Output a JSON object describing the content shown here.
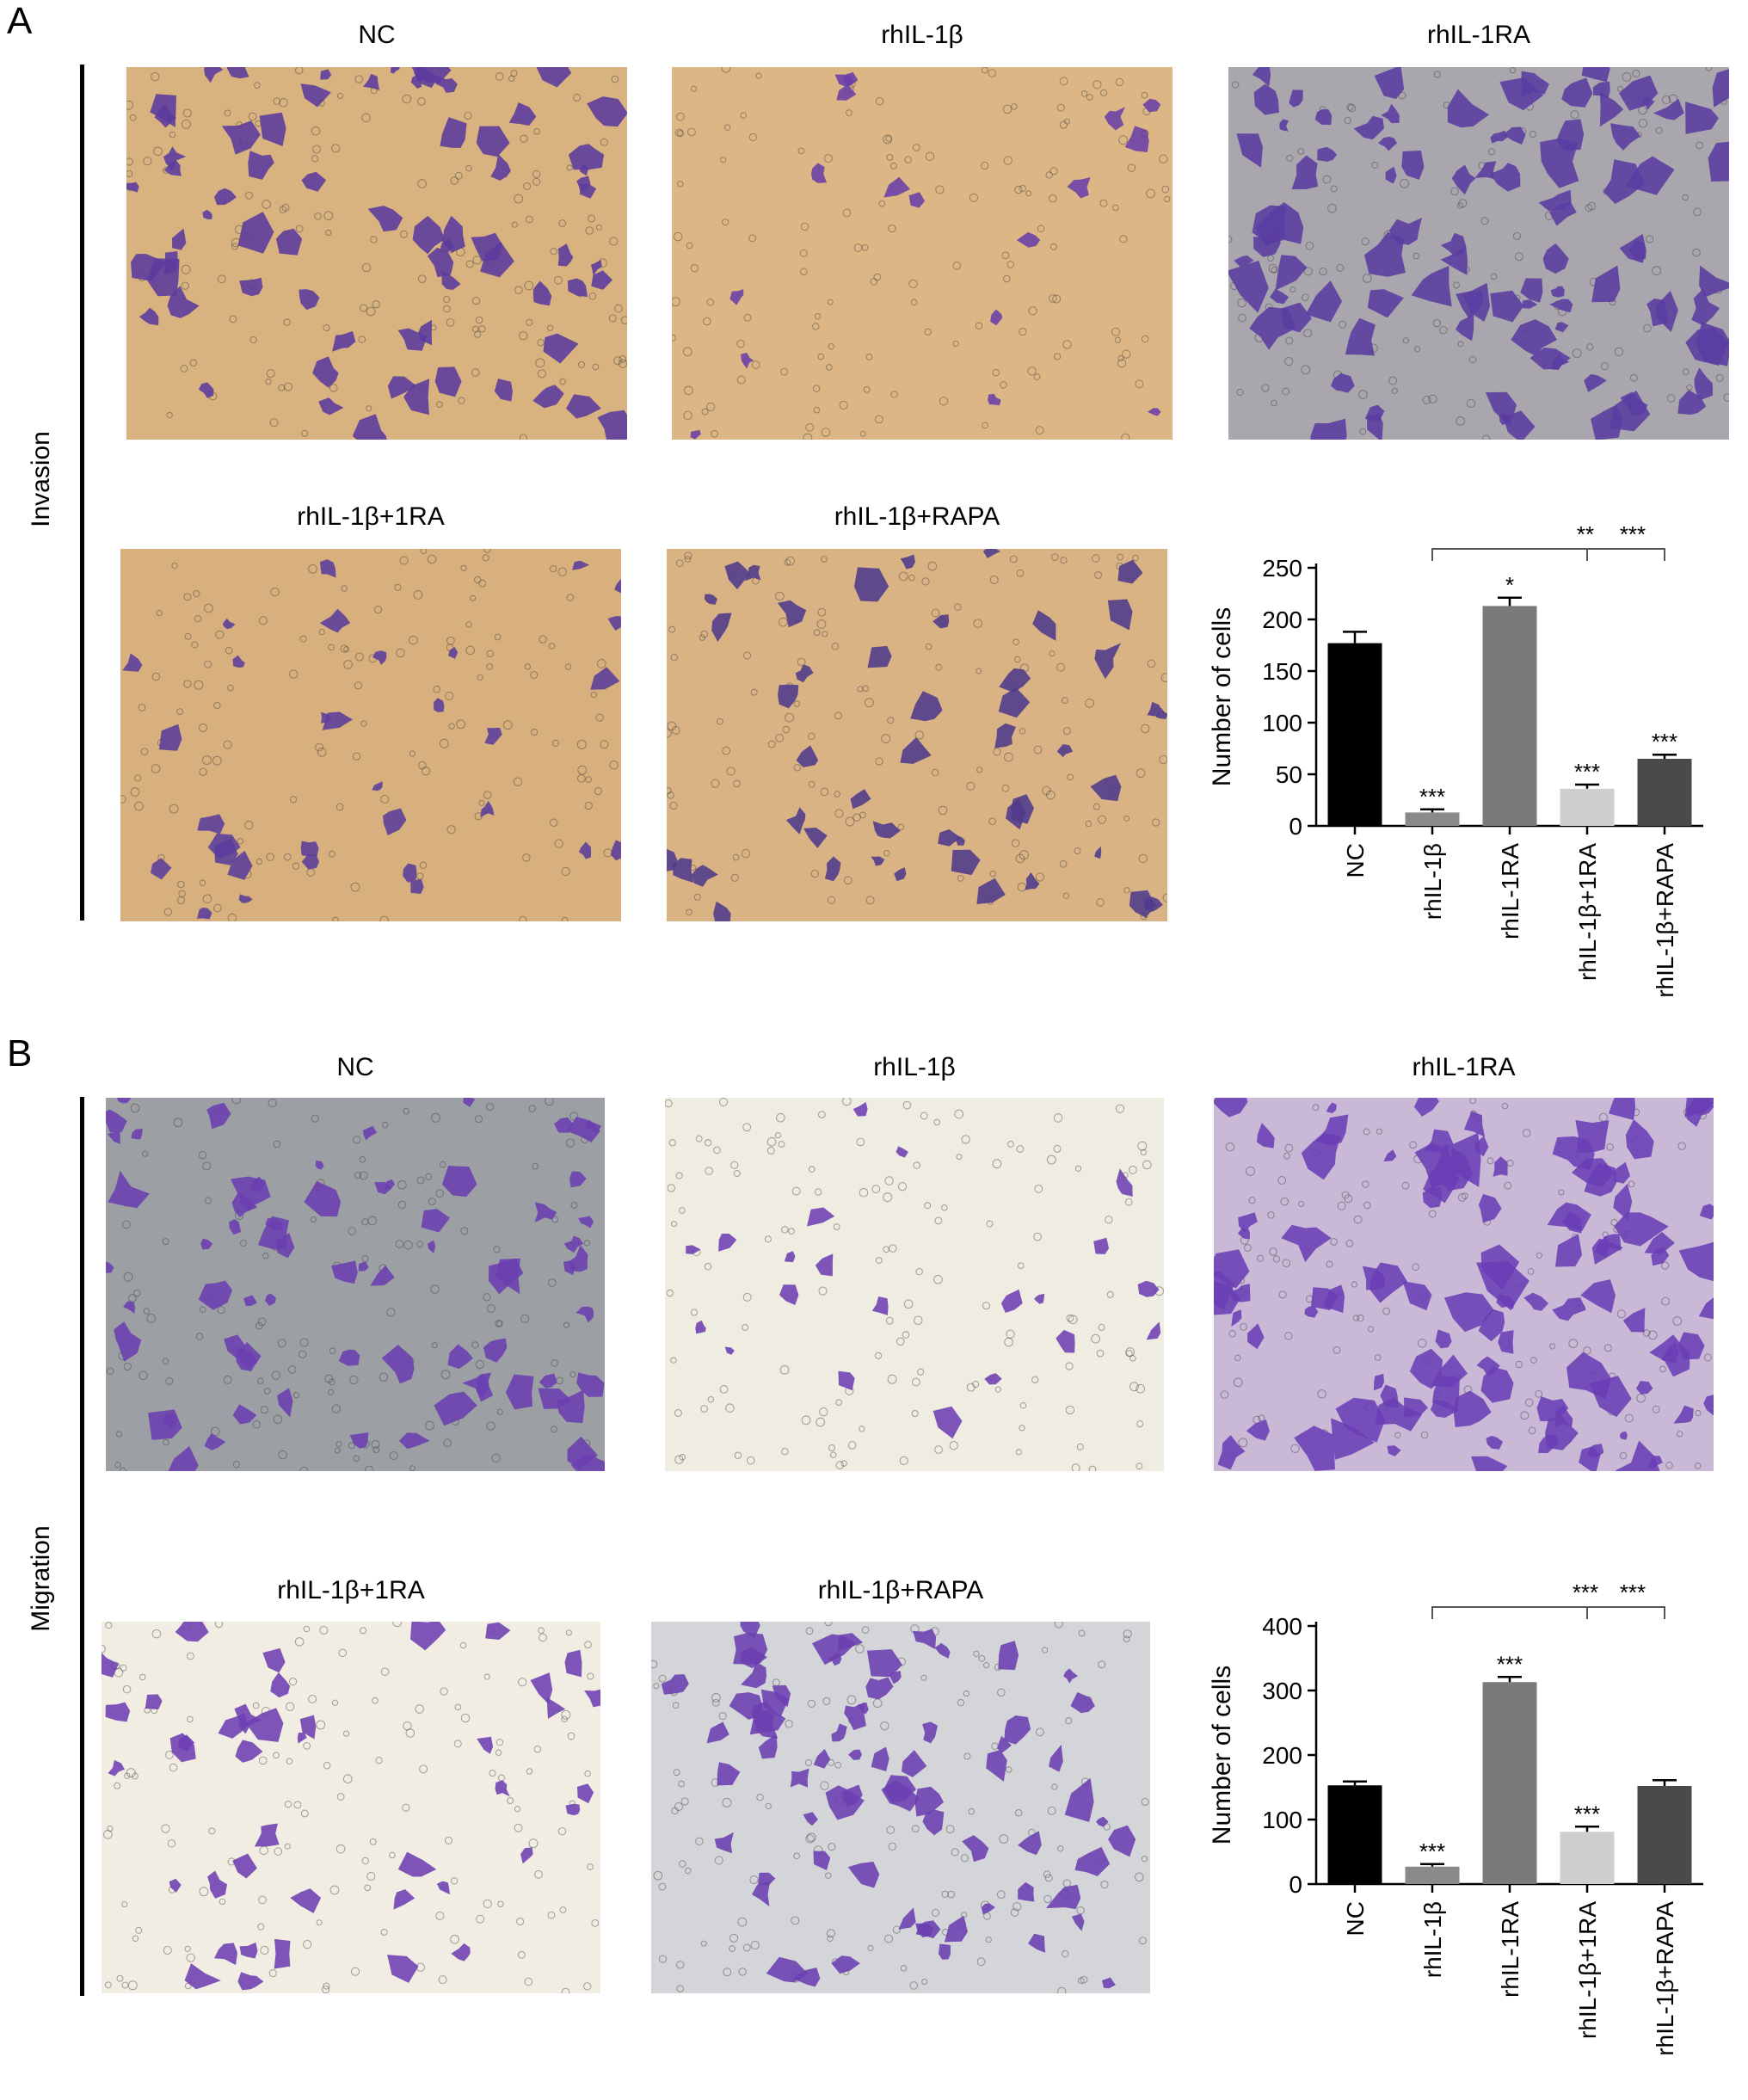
{
  "panels": [
    {
      "letter": "A",
      "side_label": "Invasion",
      "images": [
        {
          "title": "NC",
          "bg": "#d8b27f",
          "cell_color": "#5b3a9e",
          "density": 0.55
        },
        {
          "title": "rhIL-1β",
          "bg": "#dcb684",
          "cell_color": "#6a3fa8",
          "density": 0.08
        },
        {
          "title": "rhIL-1RA",
          "bg": "#a9a7ad",
          "cell_color": "#5a3ca0",
          "density": 0.75
        },
        {
          "title": "rhIL-1β+1RA",
          "bg": "#d7b07d",
          "cell_color": "#5b3c9c",
          "density": 0.22
        },
        {
          "title": "rhIL-1β+RAPA",
          "bg": "#dab384",
          "cell_color": "#4f3a8c",
          "density": 0.35
        }
      ]
    },
    {
      "letter": "B",
      "side_label": "Migration",
      "images": [
        {
          "title": "NC",
          "bg": "#9c9fa4",
          "cell_color": "#6a3fb0",
          "density": 0.55
        },
        {
          "title": "rhIL-1β",
          "bg": "#efece1",
          "cell_color": "#6e3fb2",
          "density": 0.12
        },
        {
          "title": "rhIL-1RA",
          "bg": "#c9b8d6",
          "cell_color": "#6a3fb5",
          "density": 0.85
        },
        {
          "title": "rhIL-1β+1RA",
          "bg": "#f1ede2",
          "cell_color": "#6d3fb3",
          "density": 0.3
        },
        {
          "title": "rhIL-1β+RAPA",
          "bg": "#d3d5d8",
          "cell_color": "#6b3fb0",
          "density": 0.55
        }
      ]
    }
  ],
  "chart_data": [
    {
      "type": "bar",
      "categories": [
        "NC",
        "rhIL-1β",
        "rhIL-1RA",
        "rhIL-1β+1RA",
        "rhIL-1β+RAPA"
      ],
      "values": [
        177,
        13,
        213,
        36,
        65
      ],
      "errors": [
        11,
        3,
        8,
        4,
        4
      ],
      "bar_colors": [
        "#000000",
        "#8a8a8a",
        "#7a7a7a",
        "#cfcfcf",
        "#4a4a4a"
      ],
      "significance": [
        "",
        "***",
        "*",
        "***",
        "***"
      ],
      "comparison_labels": [
        "**",
        "***"
      ],
      "ylabel": "Number of cells",
      "ylim": [
        0,
        250
      ],
      "yticks": [
        0,
        50,
        100,
        150,
        200,
        250
      ]
    },
    {
      "type": "bar",
      "categories": [
        "NC",
        "rhIL-1β",
        "rhIL-1RA",
        "rhIL-1β+1RA",
        "rhIL-1β+RAPA"
      ],
      "values": [
        153,
        27,
        313,
        81,
        152
      ],
      "errors": [
        6,
        4,
        8,
        8,
        9
      ],
      "bar_colors": [
        "#000000",
        "#8a8a8a",
        "#7a7a7a",
        "#cfcfcf",
        "#4a4a4a"
      ],
      "significance": [
        "",
        "***",
        "***",
        "***",
        ""
      ],
      "comparison_labels": [
        "***",
        "***"
      ],
      "ylabel": "Number of cells",
      "ylim": [
        0,
        400
      ],
      "yticks": [
        0,
        100,
        200,
        300,
        400
      ]
    }
  ]
}
